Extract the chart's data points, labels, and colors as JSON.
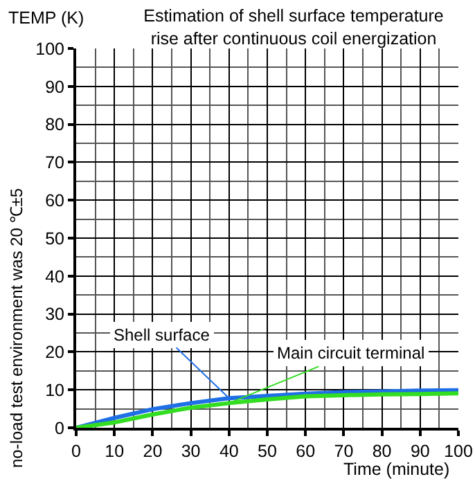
{
  "chart_data": {
    "type": "line",
    "title": "Estimation of shell surface temperature\nrise after continuous coil energization",
    "xlabel": "Time (minute)",
    "ylabel": "TEMP (K)",
    "annotations": [
      "no-load test environment was 20 ℃±5"
    ],
    "x": [
      0,
      10,
      20,
      30,
      40,
      50,
      60,
      70,
      80,
      90,
      100
    ],
    "series": [
      {
        "name": "Shell surface",
        "color": "#1f6fe6",
        "values": [
          0,
          2.6,
          4.9,
          6.5,
          7.8,
          8.4,
          9.0,
          9.4,
          9.6,
          9.8,
          9.9
        ]
      },
      {
        "name": "Main circuit terminal",
        "color": "#33dd22",
        "values": [
          0,
          1.4,
          3.5,
          5.3,
          6.5,
          7.5,
          8.3,
          8.6,
          8.8,
          8.9,
          9.1
        ]
      }
    ],
    "xlim": [
      0,
      100
    ],
    "ylim": [
      0,
      100
    ],
    "xticks": [
      0,
      10,
      20,
      30,
      40,
      50,
      60,
      70,
      80,
      90,
      100
    ],
    "yticks": [
      0,
      10,
      20,
      30,
      40,
      50,
      60,
      70,
      80,
      90,
      100
    ],
    "grid": true,
    "legend": false,
    "marker": "none",
    "line_style": "solid"
  }
}
